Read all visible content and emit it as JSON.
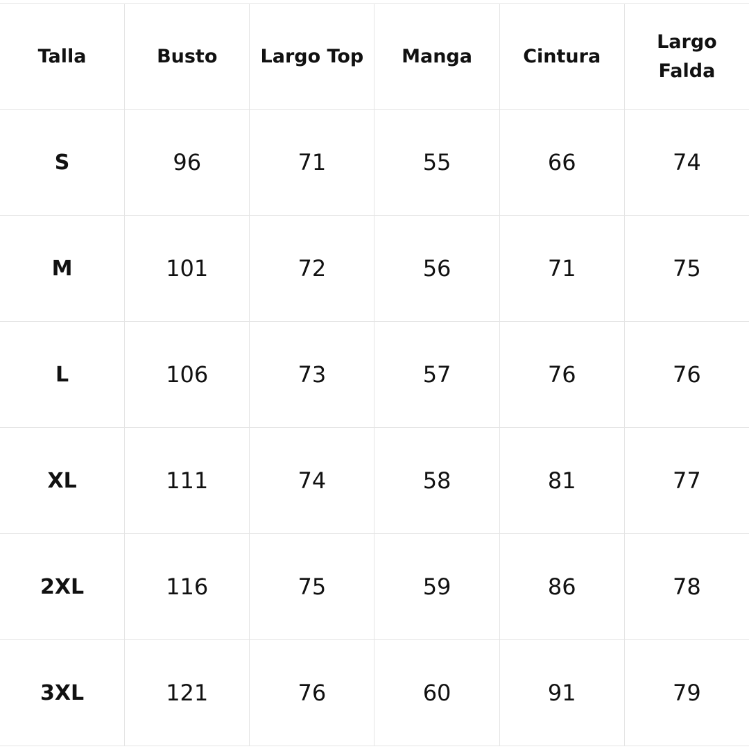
{
  "table": {
    "headers": [
      "Talla",
      "Busto",
      "Largo Top",
      "Manga",
      "Cintura",
      "Largo Falda"
    ],
    "rows": [
      [
        "S",
        "96",
        "71",
        "55",
        "66",
        "74"
      ],
      [
        "M",
        "101",
        "72",
        "56",
        "71",
        "75"
      ],
      [
        "L",
        "106",
        "73",
        "57",
        "76",
        "76"
      ],
      [
        "XL",
        "111",
        "74",
        "58",
        "81",
        "77"
      ],
      [
        "2XL",
        "116",
        "75",
        "59",
        "86",
        "78"
      ],
      [
        "3XL",
        "121",
        "76",
        "60",
        "91",
        "79"
      ]
    ]
  }
}
